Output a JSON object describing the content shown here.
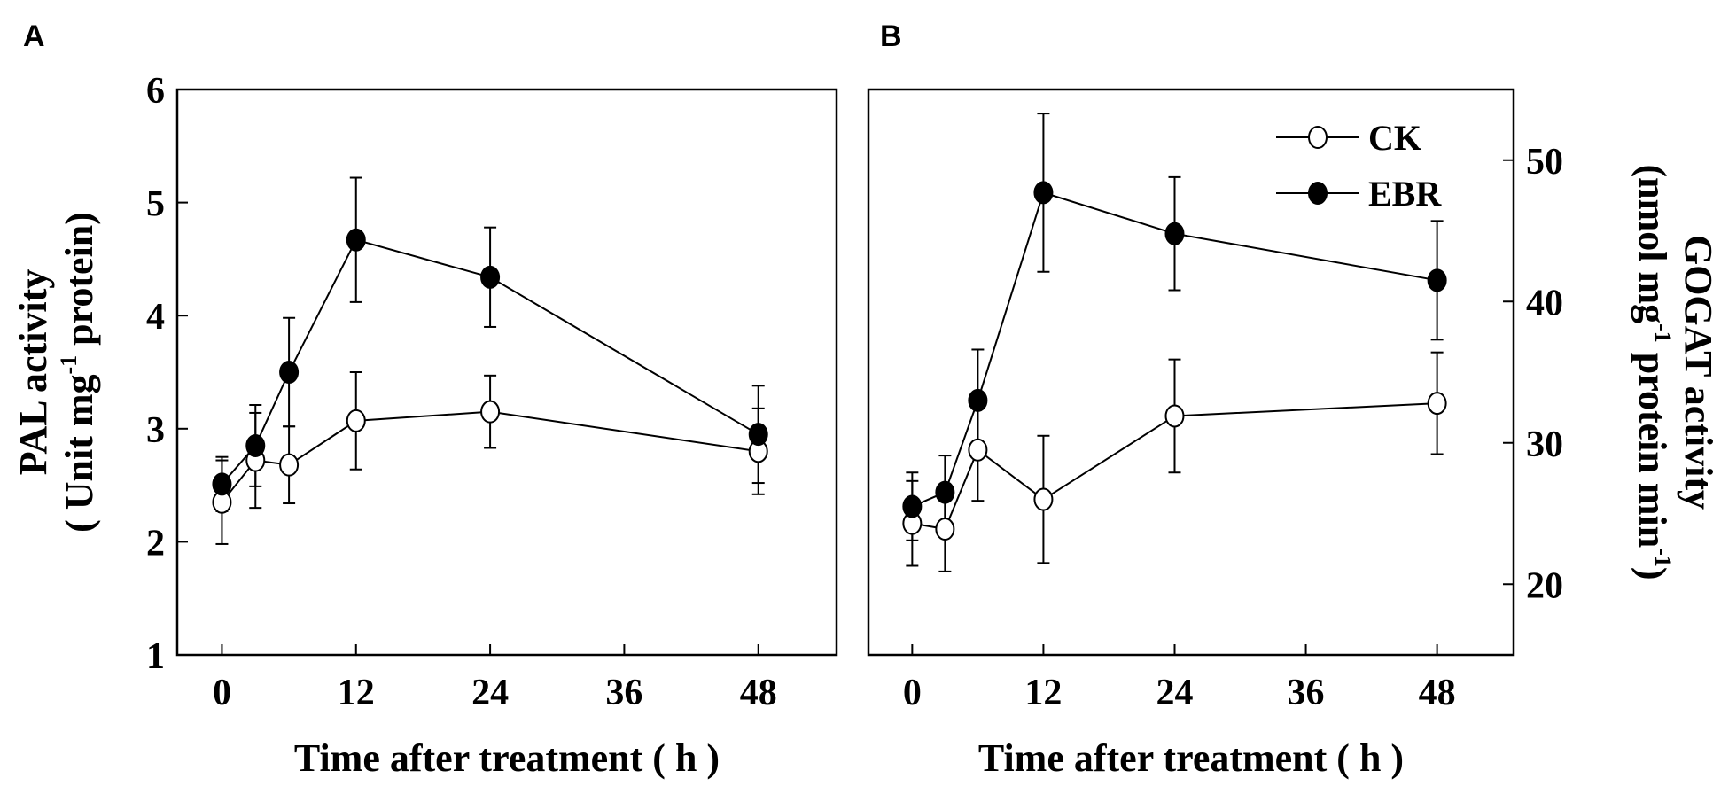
{
  "chart_data": [
    {
      "panel": "A",
      "type": "line",
      "xlabel": "Time after treatment ( h )",
      "ylabel_line1": "PAL activity",
      "ylabel_line2": "( Unit mg",
      "ylabel_sup": "-1",
      "ylabel_line2_end": " protein)",
      "x_ticks": [
        "0",
        "12",
        "24",
        "36",
        "48"
      ],
      "y_ticks": [
        "1",
        "2",
        "3",
        "4",
        "5",
        "6"
      ],
      "ylim": [
        1,
        6
      ],
      "xlim": [
        -4,
        55
      ],
      "x": [
        0,
        3,
        6,
        12,
        24,
        48
      ],
      "series": [
        {
          "name": "CK",
          "values": [
            2.35,
            2.72,
            2.68,
            3.07,
            3.15,
            2.8
          ],
          "errors": [
            0.37,
            0.42,
            0.34,
            0.43,
            0.32,
            0.38
          ]
        },
        {
          "name": "EBR",
          "values": [
            2.51,
            2.85,
            3.5,
            4.67,
            4.34,
            2.95
          ],
          "errors": [
            0.24,
            0.36,
            0.48,
            0.55,
            0.44,
            0.43
          ]
        }
      ]
    },
    {
      "panel": "B",
      "type": "line",
      "xlabel": "Time after treatment ( h )",
      "ylabel_line1": "GOGAT activity",
      "ylabel_line2": "(nmol mg",
      "ylabel_sup": "-1",
      "ylabel_line2_mid": " protein min",
      "ylabel_sup2": "-1",
      "ylabel_line2_end": ")",
      "x_ticks": [
        "0",
        "12",
        "24",
        "36",
        "48"
      ],
      "y_ticks": [
        "20",
        "30",
        "40",
        "50"
      ],
      "ylim": [
        15,
        55
      ],
      "xlim": [
        -4,
        55
      ],
      "x": [
        0,
        3,
        6,
        12,
        24,
        48
      ],
      "series": [
        {
          "name": "CK",
          "values": [
            24.3,
            23.9,
            29.5,
            26.0,
            31.9,
            32.8
          ],
          "errors": [
            3.0,
            3.0,
            3.6,
            4.5,
            4.0,
            3.6
          ]
        },
        {
          "name": "EBR",
          "values": [
            25.5,
            26.5,
            33.0,
            47.7,
            44.8,
            41.5
          ],
          "errors": [
            2.4,
            2.6,
            3.6,
            5.6,
            4.0,
            4.2
          ]
        }
      ],
      "legend": [
        "CK",
        "EBR"
      ]
    }
  ]
}
